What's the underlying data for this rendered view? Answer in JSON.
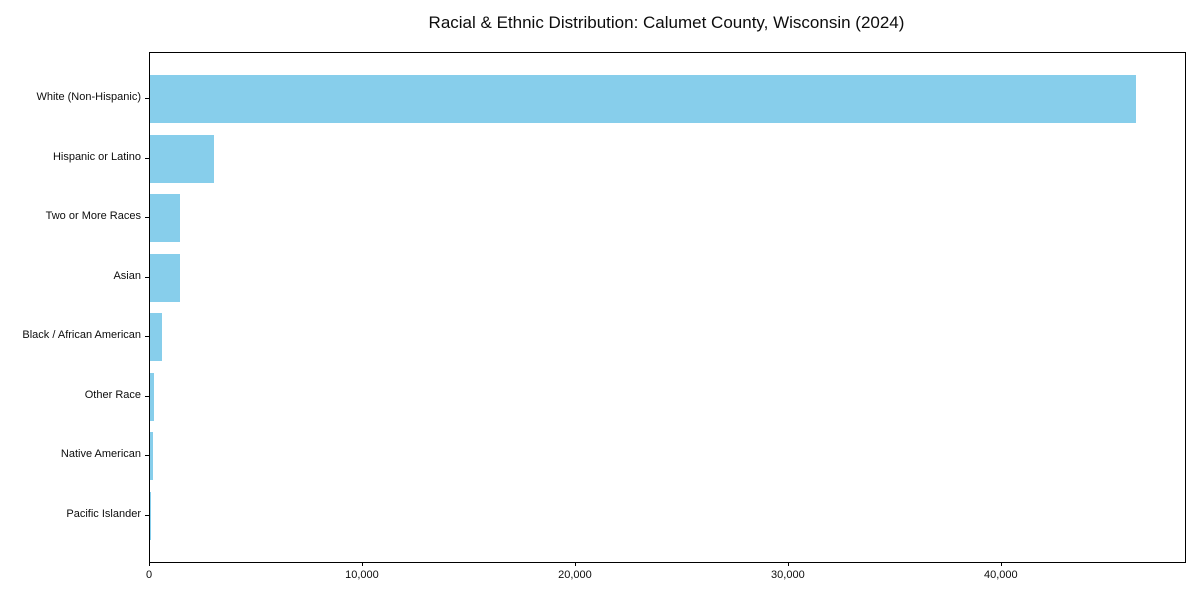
{
  "chart_data": {
    "type": "bar",
    "orientation": "horizontal",
    "title": "Racial & Ethnic Distribution: Calumet County, Wisconsin (2024)",
    "xlabel": "",
    "ylabel": "",
    "categories": [
      "White (Non-Hispanic)",
      "Hispanic or Latino",
      "Two or More Races",
      "Asian",
      "Black / African American",
      "Other Race",
      "Native American",
      "Pacific Islander"
    ],
    "values": [
      46300,
      2990,
      1420,
      1400,
      550,
      170,
      130,
      20
    ],
    "xlim": [
      0,
      48600
    ],
    "xticks": [
      {
        "value": 0,
        "label": "0"
      },
      {
        "value": 10000,
        "label": "10,000"
      },
      {
        "value": 20000,
        "label": "20,000"
      },
      {
        "value": 30000,
        "label": "30,000"
      },
      {
        "value": 40000,
        "label": "40,000"
      }
    ],
    "bar_color": "#87CEEB",
    "grid": false,
    "legend": null,
    "frame": "full-box",
    "background_color": "#ffffff"
  }
}
